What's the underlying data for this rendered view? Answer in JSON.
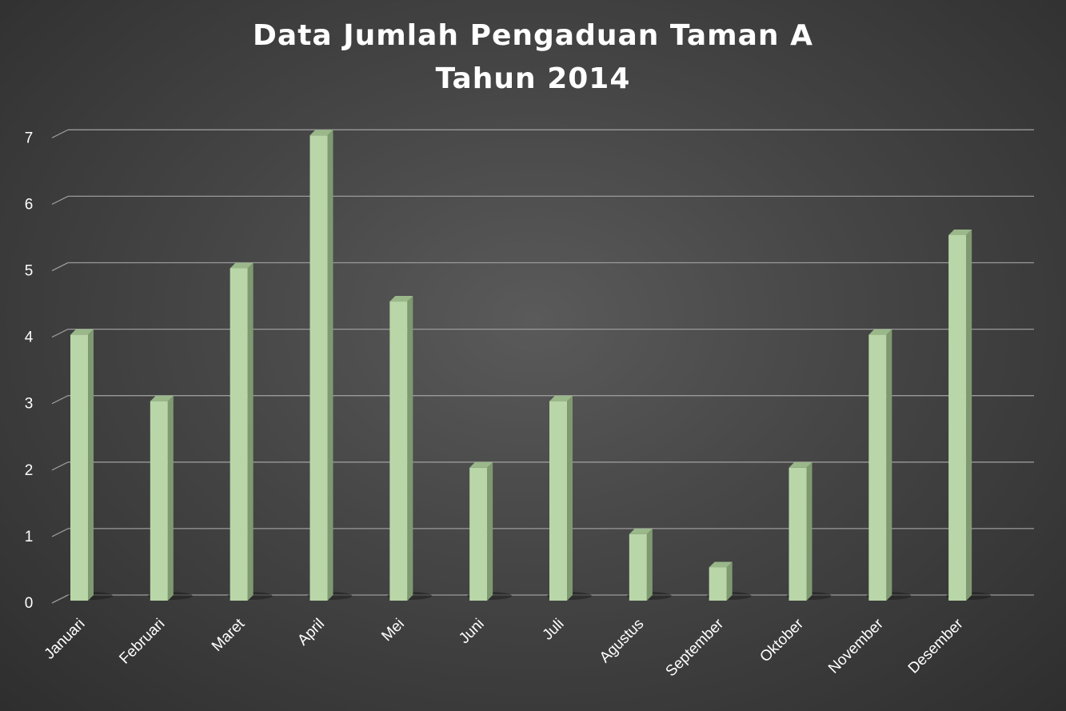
{
  "chart_data": {
    "type": "bar",
    "title_lines": [
      "Data Jumlah Pengaduan Taman A",
      "Tahun 2014"
    ],
    "categories": [
      "Januari",
      "Februari",
      "Maret",
      "April",
      "Mei",
      "Juni",
      "Juli",
      "Agustus",
      "September",
      "Oktober",
      "November",
      "Desember"
    ],
    "series": [
      {
        "values": [
          4,
          3,
          5,
          7,
          4.5,
          2,
          3,
          1,
          0.5,
          2,
          4,
          5.5
        ]
      }
    ],
    "y_ticks": [
      "0",
      "1",
      "2",
      "3",
      "4",
      "5",
      "6",
      "7"
    ],
    "ylim": [
      0,
      7
    ],
    "grid": true,
    "colors": {
      "bar_front": "#b9d6a8",
      "bar_side": "#7f9a70",
      "bar_top": "#9ab88a",
      "grid": "#9a9a9a",
      "text": "#ffffff"
    }
  }
}
